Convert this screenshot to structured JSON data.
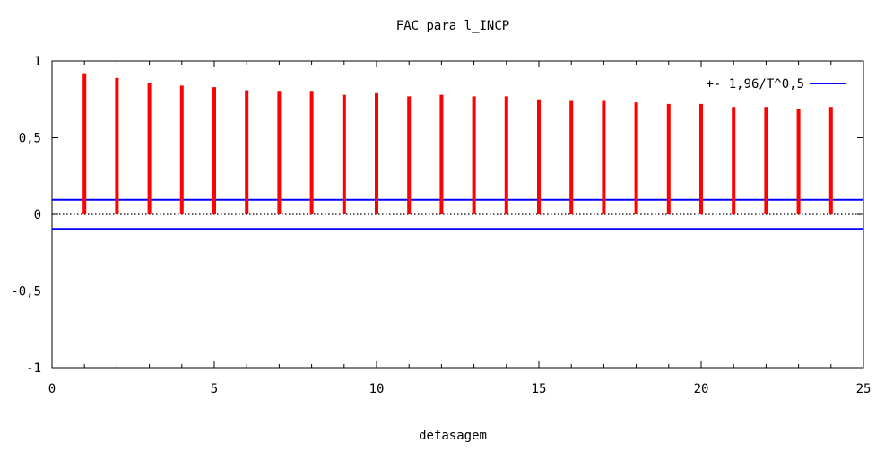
{
  "chart_data": {
    "type": "bar",
    "title": "FAC para l_INCP",
    "xlabel": "defasagem",
    "ylabel": "",
    "xlim": [
      0,
      25
    ],
    "ylim": [
      -1,
      1
    ],
    "x_ticks": [
      "0",
      "5",
      "10",
      "15",
      "20",
      "25"
    ],
    "y_ticks": [
      "1",
      "0,5",
      "0",
      "-0,5",
      "-1"
    ],
    "grid": false,
    "legend_position": "top-right",
    "series": [
      {
        "lags": [
          1,
          2,
          3,
          4,
          5,
          6,
          7,
          8,
          9,
          10,
          11,
          12,
          13,
          14,
          15,
          16,
          17,
          18,
          19,
          20,
          21,
          22,
          23,
          24
        ],
        "values": [
          0.92,
          0.89,
          0.86,
          0.84,
          0.83,
          0.81,
          0.8,
          0.8,
          0.78,
          0.79,
          0.77,
          0.78,
          0.77,
          0.77,
          0.75,
          0.74,
          0.74,
          0.73,
          0.72,
          0.72,
          0.7,
          0.7,
          0.69,
          0.7
        ],
        "color": "#ff0000"
      }
    ],
    "confidence_band": {
      "name": "+- 1,96/T^0,5",
      "value": 0.095,
      "color": "#0000ff"
    },
    "zero_line_style": "dotted"
  }
}
